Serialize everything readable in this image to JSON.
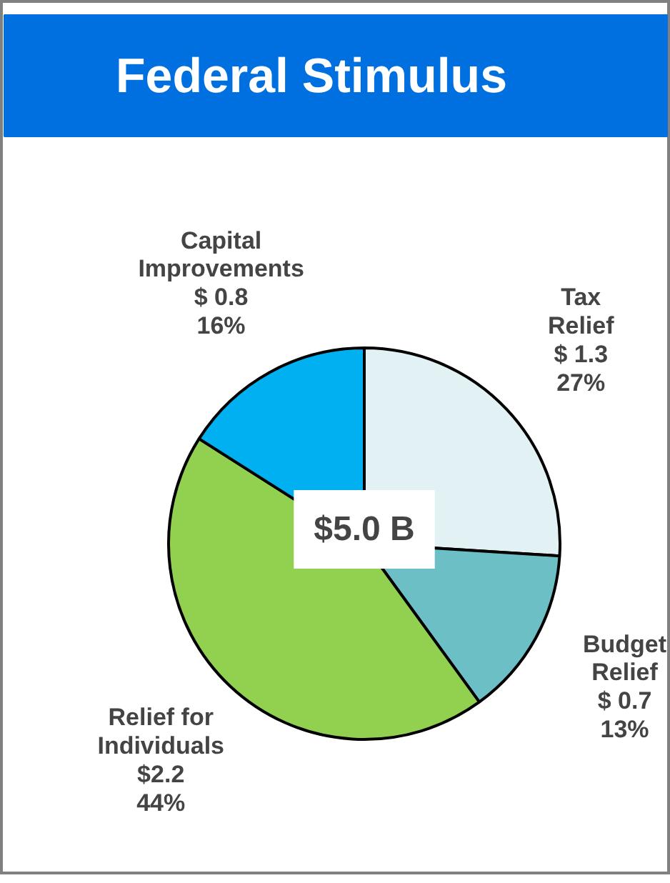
{
  "chart_data": {
    "type": "pie",
    "title": "Federal Stimulus",
    "categories": [
      "Tax Relief",
      "Budget Relief",
      "Relief for Individuals",
      "Capital Improvements"
    ],
    "values": [
      1.3,
      0.7,
      2.2,
      0.8
    ],
    "colors": [
      "#e2f2f4",
      "#6dbfc6",
      "#92d050",
      "#00b0f0"
    ],
    "value_labels": [
      "$ 1.3\n27%",
      "$ 0.7\n13%",
      "$2.2\n44%",
      "$ 0.8\n16%"
    ],
    "annotations": [
      "$5.0 B"
    ]
  }
}
